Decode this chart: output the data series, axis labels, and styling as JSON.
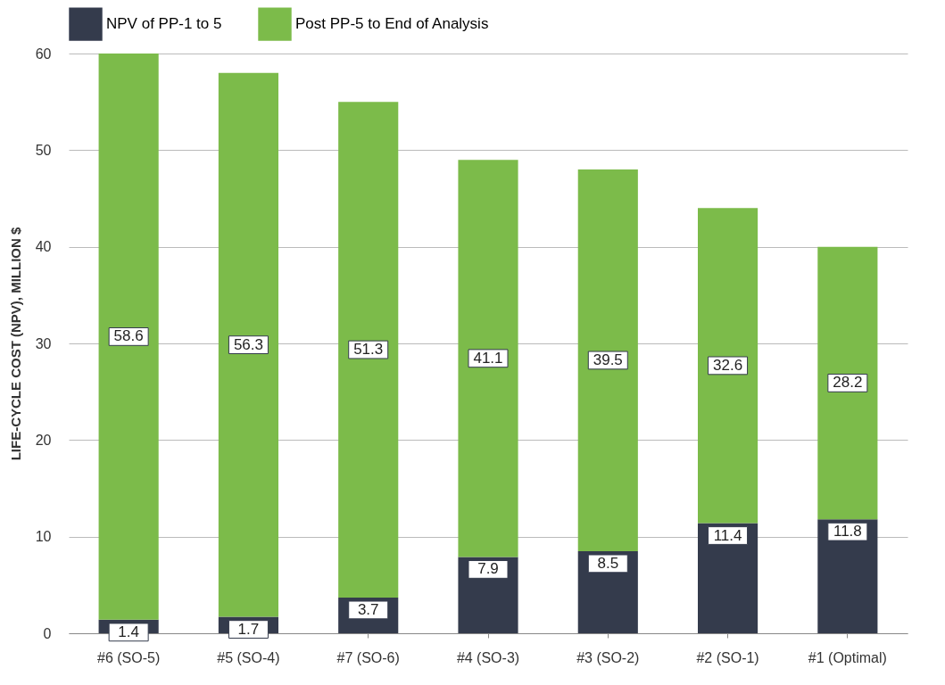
{
  "chart_data": {
    "type": "bar",
    "stacked": true,
    "ylabel": "LIFE-CYCLE COST (NPV), MILLION $",
    "categories": [
      "#6 (SO-5)",
      "#5 (SO-4)",
      "#7 (SO-6)",
      "#4 (SO-3)",
      "#3 (SO-2)",
      "#2 (SO-1)",
      "#1 (Optimal)"
    ],
    "series": [
      {
        "name": "NPV of PP-1 to 5",
        "color": "#343b4c",
        "values": [
          1.4,
          1.7,
          3.7,
          7.9,
          8.5,
          11.4,
          11.8
        ]
      },
      {
        "name": "Post PP-5 to End of Analysis",
        "color": "#7cbb4a",
        "values": [
          58.6,
          56.3,
          51.3,
          41.1,
          39.5,
          32.6,
          28.2
        ]
      }
    ],
    "ylim": [
      0,
      60
    ],
    "yticks": [
      0,
      10,
      20,
      30,
      40,
      50,
      60
    ],
    "grid": "y",
    "legend": "top left",
    "data_labels": true
  }
}
